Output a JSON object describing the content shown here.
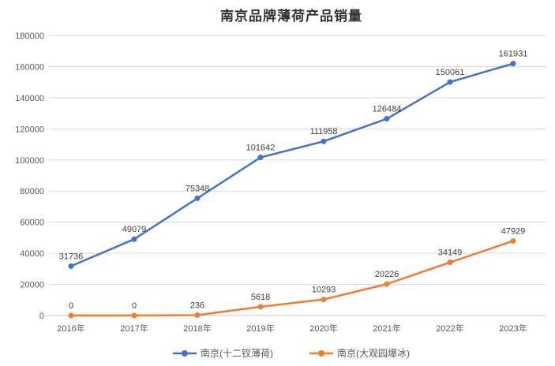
{
  "chart_data": {
    "type": "line",
    "title": "南京品牌薄荷产品销量",
    "categories": [
      "2016年",
      "2017年",
      "2018年",
      "2019年",
      "2020年",
      "2021年",
      "2022年",
      "2023年"
    ],
    "series": [
      {
        "name": "南京(十二钗薄荷)",
        "color": "#4472C4",
        "values": [
          31736,
          49079,
          75348,
          101642,
          111958,
          126484,
          150061,
          161931
        ]
      },
      {
        "name": "南京(大观园爆冰)",
        "color": "#ED7D31",
        "values": [
          0,
          0,
          236,
          5618,
          10293,
          20226,
          34149,
          47929
        ]
      }
    ],
    "ylim": [
      0,
      180000
    ],
    "ytick_step": 20000,
    "yticks": [
      0,
      20000,
      40000,
      60000,
      80000,
      100000,
      120000,
      140000,
      160000,
      180000
    ],
    "grid": true,
    "data_labels": true,
    "legend_position": "bottom",
    "marker": "circle"
  },
  "colors": {
    "grid": "#D9D9D9",
    "axis_line": "#C9C9C9",
    "axis_text": "#595959",
    "label_text": "#404040",
    "title_text": "#333333",
    "background": "#FFFFFF"
  }
}
